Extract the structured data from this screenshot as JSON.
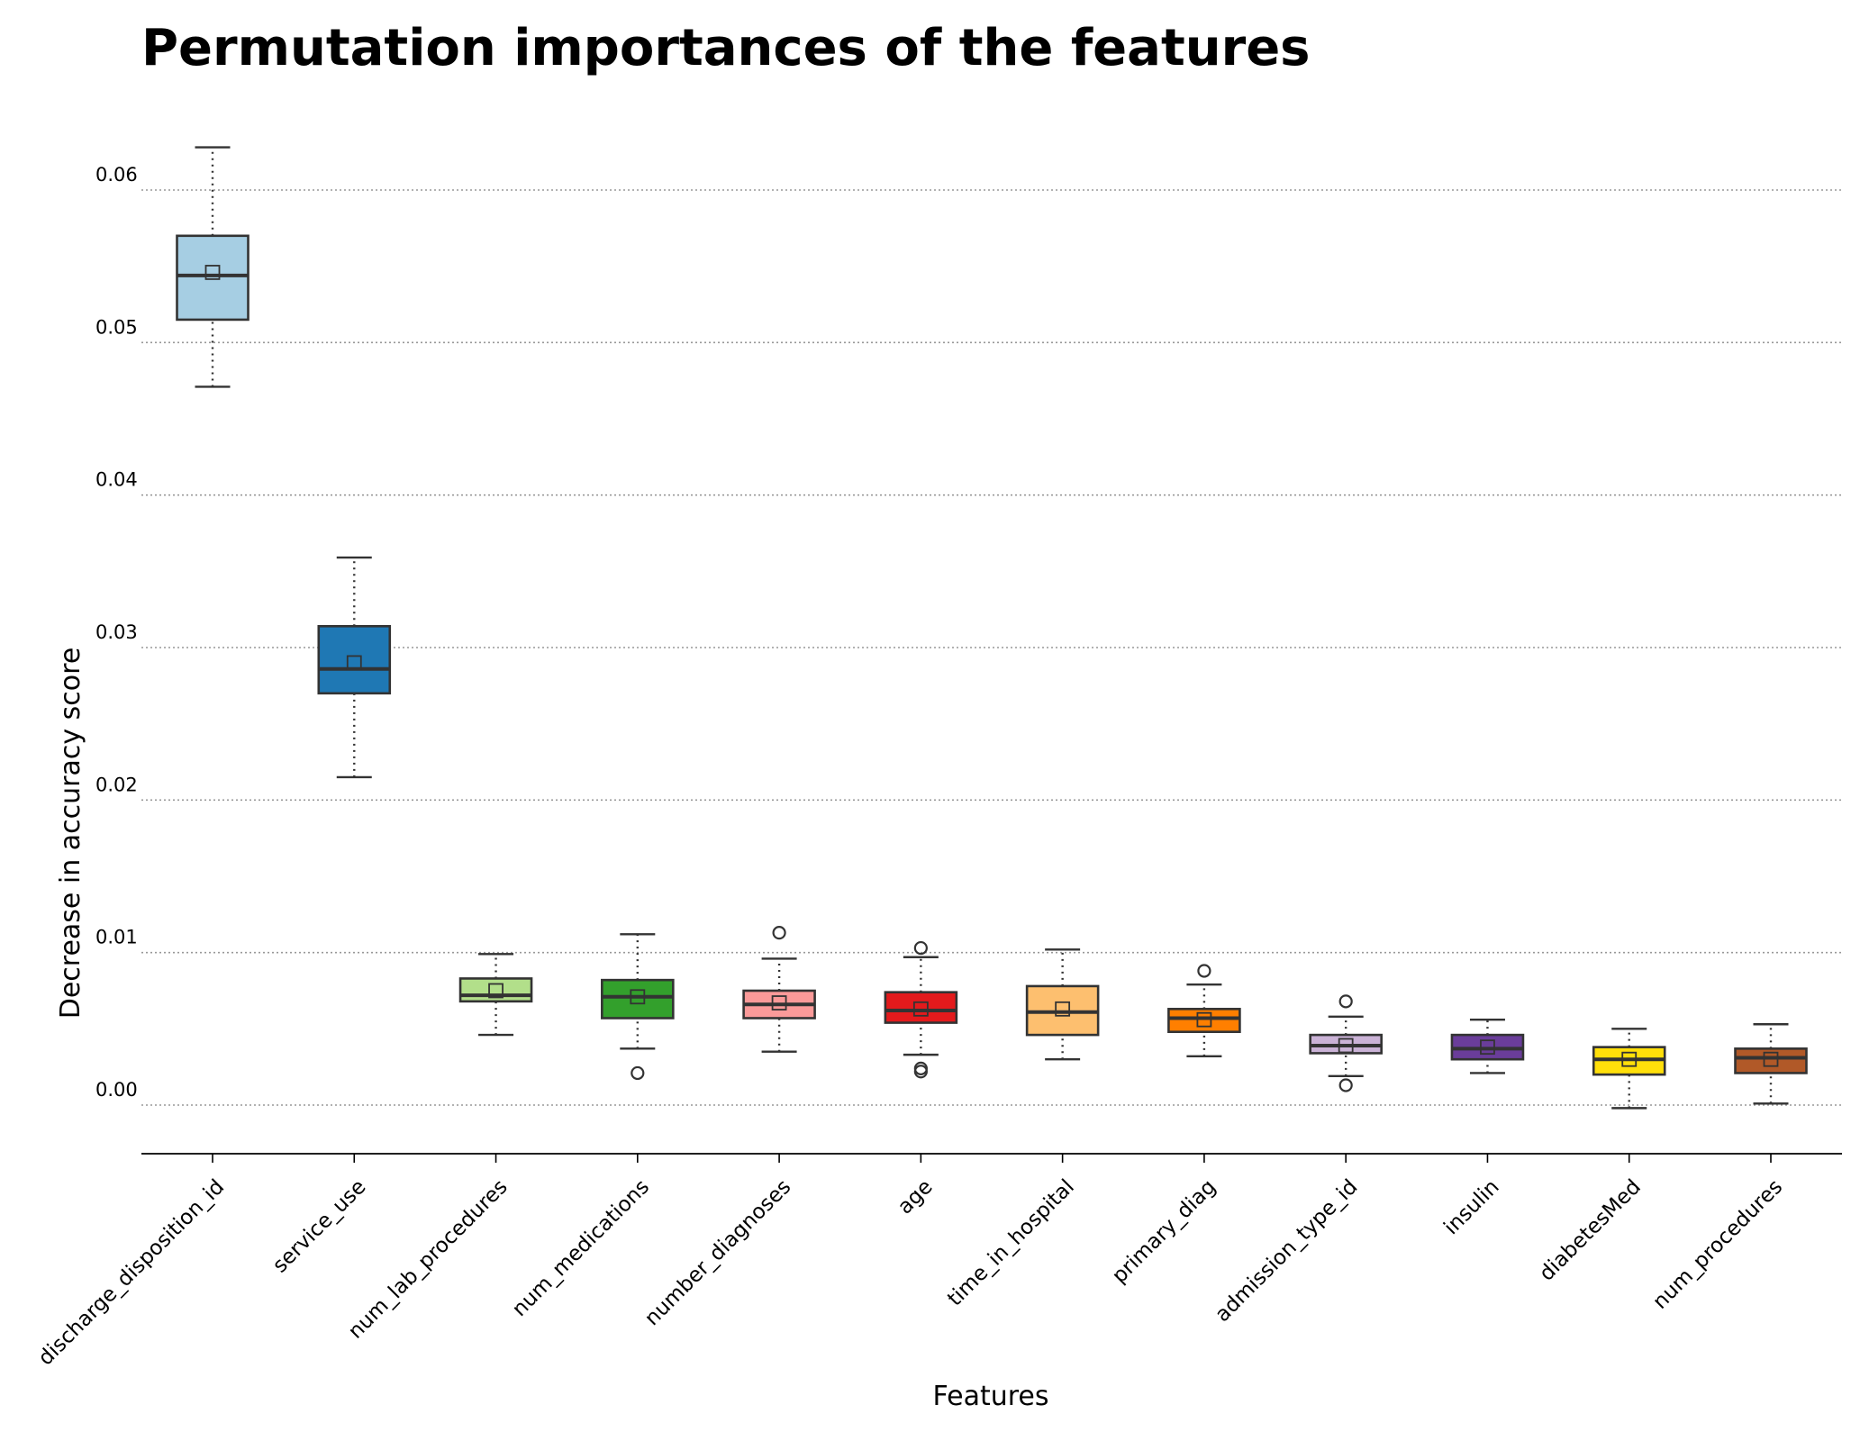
{
  "chart_data": {
    "type": "box",
    "title": "Permutation importances of the features",
    "xlabel": "Features",
    "ylabel": "Decrease in accuracy score",
    "ylim": [
      -0.0032,
      0.066
    ],
    "yticks": [
      0.0,
      0.01,
      0.02,
      0.03,
      0.04,
      0.05,
      0.06
    ],
    "ytick_labels": [
      "0.00",
      "0.01",
      "0.02",
      "0.03",
      "0.04",
      "0.05",
      "0.06"
    ],
    "grid": "horizontal dotted",
    "legend": "none",
    "categories": [
      "discharge_disposition_id",
      "service_use",
      "num_lab_procedures",
      "num_medications",
      "number_diagnoses",
      "age",
      "time_in_hospital",
      "primary_diag",
      "admission_type_id",
      "insulin",
      "diabetesMed",
      "num_procedures"
    ],
    "boxes": [
      {
        "min": 0.0471,
        "q1": 0.0515,
        "median": 0.0544,
        "q3": 0.057,
        "max": 0.0628,
        "mean": 0.0546,
        "outliers": [],
        "color": "#a6cee3"
      },
      {
        "min": 0.0215,
        "q1": 0.027,
        "median": 0.0286,
        "q3": 0.0314,
        "max": 0.0359,
        "mean": 0.029,
        "outliers": [],
        "color": "#1f78b4"
      },
      {
        "min": 0.0046,
        "q1": 0.0068,
        "median": 0.0072,
        "q3": 0.0083,
        "max": 0.0099,
        "mean": 0.0075,
        "outliers": [],
        "color": "#b2df8a"
      },
      {
        "min": 0.0037,
        "q1": 0.0057,
        "median": 0.0071,
        "q3": 0.0082,
        "max": 0.0112,
        "mean": 0.0071,
        "outliers": [
          0.0021
        ],
        "color": "#33a02c"
      },
      {
        "min": 0.0035,
        "q1": 0.0057,
        "median": 0.0066,
        "q3": 0.0075,
        "max": 0.0096,
        "mean": 0.0067,
        "outliers": [
          0.0113
        ],
        "color": "#fb9a99"
      },
      {
        "min": 0.0033,
        "q1": 0.0054,
        "median": 0.0062,
        "q3": 0.0074,
        "max": 0.0097,
        "mean": 0.0063,
        "outliers": [
          0.0103,
          0.0024,
          0.0022
        ],
        "color": "#e31a1c"
      },
      {
        "min": 0.003,
        "q1": 0.0046,
        "median": 0.0061,
        "q3": 0.0078,
        "max": 0.0102,
        "mean": 0.0063,
        "outliers": [],
        "color": "#fdbf6f"
      },
      {
        "min": 0.0032,
        "q1": 0.0048,
        "median": 0.0057,
        "q3": 0.0063,
        "max": 0.0079,
        "mean": 0.0056,
        "outliers": [
          0.0088
        ],
        "color": "#ff7f00"
      },
      {
        "min": 0.0019,
        "q1": 0.0034,
        "median": 0.0039,
        "q3": 0.0046,
        "max": 0.0058,
        "mean": 0.0039,
        "outliers": [
          0.0068,
          0.0013
        ],
        "color": "#cab2d6"
      },
      {
        "min": 0.0021,
        "q1": 0.003,
        "median": 0.0037,
        "q3": 0.0046,
        "max": 0.0056,
        "mean": 0.0038,
        "outliers": [],
        "color": "#6a3d9a"
      },
      {
        "min": -0.0002,
        "q1": 0.002,
        "median": 0.003,
        "q3": 0.0038,
        "max": 0.005,
        "mean": 0.003,
        "outliers": [],
        "color": "#ffdf0a"
      },
      {
        "min": 0.0001,
        "q1": 0.0021,
        "median": 0.0031,
        "q3": 0.0037,
        "max": 0.0053,
        "mean": 0.003,
        "outliers": [],
        "color": "#b15928"
      }
    ]
  }
}
